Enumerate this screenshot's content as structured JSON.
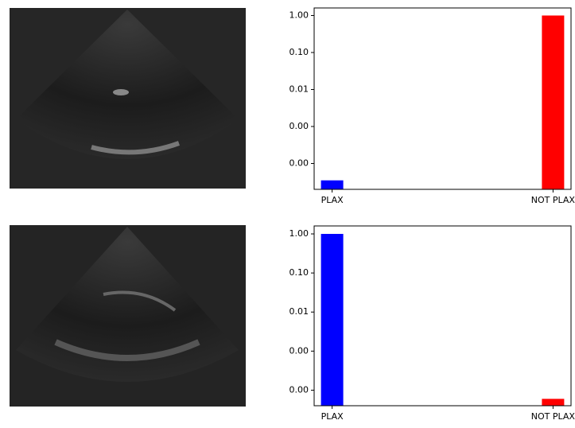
{
  "chart_data": [
    {
      "type": "bar",
      "categories": [
        "PLAX",
        "NOT PLAX"
      ],
      "values": [
        3.5e-05,
        1.0
      ],
      "colors": [
        "#0000ff",
        "#ff0000"
      ],
      "log_scale": true,
      "ylim": [
        2e-05,
        1.6
      ],
      "yticks": [
        {
          "value": 0.0001,
          "label": "0.00"
        },
        {
          "value": 0.001,
          "label": "0.00"
        },
        {
          "value": 0.01,
          "label": "0.01"
        },
        {
          "value": 0.1,
          "label": "0.10"
        },
        {
          "value": 1,
          "label": "1.00"
        }
      ]
    },
    {
      "type": "bar",
      "categories": [
        "PLAX",
        "NOT PLAX"
      ],
      "values": [
        1.0,
        6e-05
      ],
      "colors": [
        "#0000ff",
        "#ff0000"
      ],
      "log_scale": true,
      "ylim": [
        4e-05,
        1.6
      ],
      "yticks": [
        {
          "value": 0.0001,
          "label": "0.00"
        },
        {
          "value": 0.001,
          "label": "0.00"
        },
        {
          "value": 0.01,
          "label": "0.01"
        },
        {
          "value": 0.1,
          "label": "0.10"
        },
        {
          "value": 1,
          "label": "1.00"
        }
      ]
    }
  ]
}
